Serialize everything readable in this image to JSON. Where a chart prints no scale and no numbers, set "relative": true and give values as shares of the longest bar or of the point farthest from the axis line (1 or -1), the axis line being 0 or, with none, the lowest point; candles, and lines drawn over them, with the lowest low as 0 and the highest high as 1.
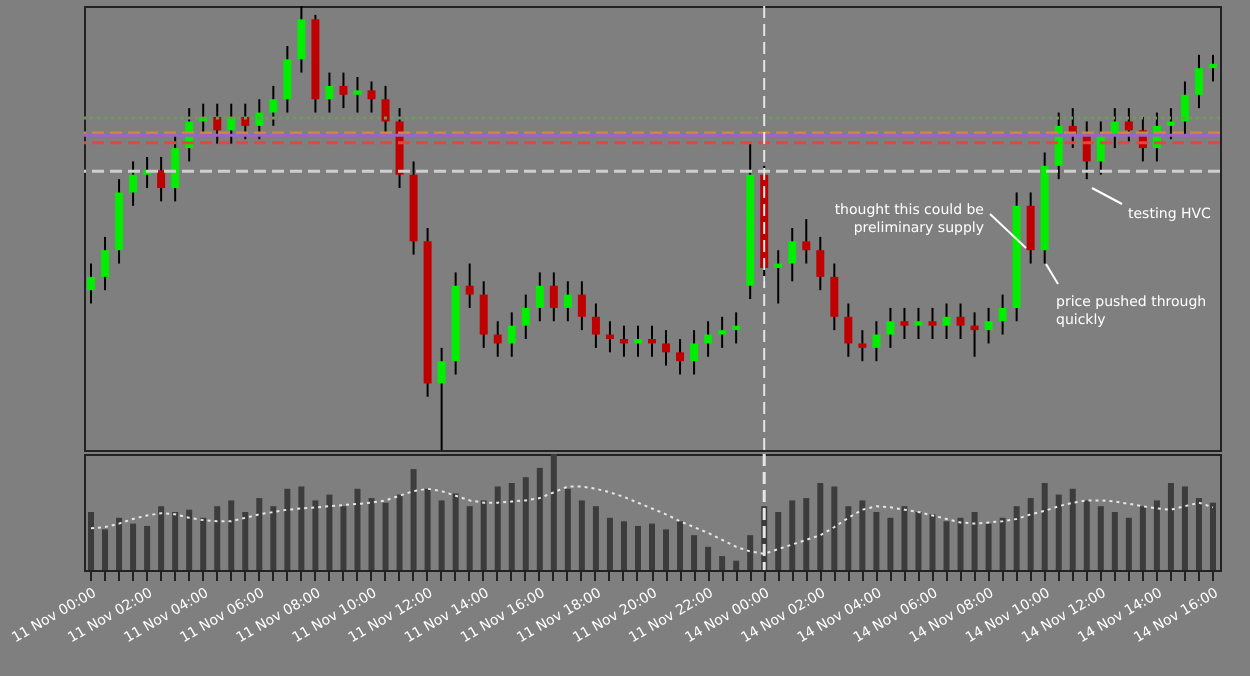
{
  "chart_data": [
    {
      "type": "candlestick",
      "relative": true,
      "categories": [
        null,
        null,
        null,
        null,
        null,
        null,
        null,
        null,
        null,
        null,
        null,
        null,
        null,
        null,
        null,
        null,
        null,
        null,
        null,
        null,
        null,
        null,
        null,
        null,
        null,
        null,
        null,
        null,
        null,
        null,
        null,
        null,
        null,
        null,
        null,
        null,
        null,
        null,
        null,
        null,
        null,
        null,
        null,
        null,
        null,
        null,
        null,
        null,
        null,
        null,
        null,
        null,
        null,
        null,
        null,
        null,
        null,
        null,
        null,
        null,
        null,
        null,
        null,
        null,
        null,
        null,
        null,
        null,
        null,
        null,
        null,
        null,
        null,
        null,
        null,
        null,
        null,
        null,
        null,
        null,
        null
      ],
      "ohlc": [
        [
          0.36,
          0.42,
          0.33,
          0.39
        ],
        [
          0.39,
          0.48,
          0.36,
          0.45
        ],
        [
          0.45,
          0.61,
          0.42,
          0.58
        ],
        [
          0.58,
          0.65,
          0.55,
          0.62
        ],
        [
          0.62,
          0.66,
          0.59,
          0.63
        ],
        [
          0.63,
          0.66,
          0.56,
          0.59
        ],
        [
          0.59,
          0.71,
          0.56,
          0.68
        ],
        [
          0.68,
          0.77,
          0.65,
          0.74
        ],
        [
          0.74,
          0.78,
          0.71,
          0.75
        ],
        [
          0.75,
          0.78,
          0.69,
          0.72
        ],
        [
          0.72,
          0.78,
          0.69,
          0.75
        ],
        [
          0.75,
          0.78,
          0.7,
          0.73
        ],
        [
          0.73,
          0.79,
          0.7,
          0.76
        ],
        [
          0.76,
          0.82,
          0.73,
          0.79
        ],
        [
          0.79,
          0.91,
          0.76,
          0.88
        ],
        [
          0.88,
          1,
          0.85,
          0.97
        ],
        [
          0.97,
          0.98,
          0.76,
          0.79
        ],
        [
          0.79,
          0.85,
          0.76,
          0.82
        ],
        [
          0.82,
          0.85,
          0.77,
          0.8
        ],
        [
          0.8,
          0.84,
          0.76,
          0.81
        ],
        [
          0.81,
          0.83,
          0.76,
          0.79
        ],
        [
          0.79,
          0.82,
          0.71,
          0.74
        ],
        [
          0.74,
          0.77,
          0.59,
          0.62
        ],
        [
          0.62,
          0.65,
          0.44,
          0.47
        ],
        [
          0.47,
          0.5,
          0.12,
          0.15
        ],
        [
          0.15,
          0.23,
          0,
          0.2
        ],
        [
          0.2,
          0.4,
          0.17,
          0.37
        ],
        [
          0.37,
          0.42,
          0.32,
          0.35
        ],
        [
          0.35,
          0.38,
          0.23,
          0.26
        ],
        [
          0.26,
          0.29,
          0.21,
          0.24
        ],
        [
          0.24,
          0.31,
          0.21,
          0.28
        ],
        [
          0.28,
          0.35,
          0.25,
          0.32
        ],
        [
          0.32,
          0.4,
          0.29,
          0.37
        ],
        [
          0.37,
          0.4,
          0.29,
          0.32
        ],
        [
          0.32,
          0.38,
          0.29,
          0.35
        ],
        [
          0.35,
          0.38,
          0.27,
          0.3
        ],
        [
          0.3,
          0.33,
          0.23,
          0.26
        ],
        [
          0.26,
          0.29,
          0.22,
          0.25
        ],
        [
          0.25,
          0.28,
          0.21,
          0.24
        ],
        [
          0.24,
          0.28,
          0.21,
          0.25
        ],
        [
          0.25,
          0.28,
          0.21,
          0.24
        ],
        [
          0.24,
          0.27,
          0.19,
          0.22
        ],
        [
          0.22,
          0.25,
          0.17,
          0.2
        ],
        [
          0.2,
          0.27,
          0.17,
          0.24
        ],
        [
          0.24,
          0.29,
          0.21,
          0.26
        ],
        [
          0.26,
          0.3,
          0.23,
          0.27
        ],
        [
          0.27,
          0.31,
          0.24,
          0.28
        ],
        [
          0.37,
          0.69,
          0.34,
          0.62
        ],
        [
          0.62,
          0.64,
          0.38,
          0.41
        ],
        [
          0.41,
          0.45,
          0.33,
          0.42
        ],
        [
          0.42,
          0.5,
          0.38,
          0.47
        ],
        [
          0.47,
          0.52,
          0.42,
          0.45
        ],
        [
          0.45,
          0.48,
          0.36,
          0.39
        ],
        [
          0.39,
          0.42,
          0.27,
          0.3
        ],
        [
          0.3,
          0.33,
          0.21,
          0.24
        ],
        [
          0.24,
          0.27,
          0.2,
          0.23
        ],
        [
          0.23,
          0.29,
          0.2,
          0.26
        ],
        [
          0.26,
          0.32,
          0.23,
          0.29
        ],
        [
          0.29,
          0.32,
          0.25,
          0.28
        ],
        [
          0.28,
          0.32,
          0.25,
          0.29
        ],
        [
          0.29,
          0.32,
          0.25,
          0.28
        ],
        [
          0.28,
          0.33,
          0.25,
          0.3
        ],
        [
          0.3,
          0.33,
          0.25,
          0.28
        ],
        [
          0.28,
          0.31,
          0.21,
          0.27
        ],
        [
          0.27,
          0.32,
          0.24,
          0.29
        ],
        [
          0.29,
          0.35,
          0.26,
          0.32
        ],
        [
          0.32,
          0.58,
          0.29,
          0.55
        ],
        [
          0.55,
          0.58,
          0.42,
          0.45
        ],
        [
          0.45,
          0.67,
          0.42,
          0.64
        ],
        [
          0.64,
          0.76,
          0.61,
          0.73
        ],
        [
          0.73,
          0.77,
          0.68,
          0.71
        ],
        [
          0.71,
          0.74,
          0.61,
          0.65
        ],
        [
          0.65,
          0.74,
          0.62,
          0.71
        ],
        [
          0.71,
          0.77,
          0.68,
          0.74
        ],
        [
          0.74,
          0.77,
          0.69,
          0.72
        ],
        [
          0.72,
          0.75,
          0.65,
          0.68
        ],
        [
          0.68,
          0.76,
          0.65,
          0.73
        ],
        [
          0.73,
          0.77,
          0.7,
          0.74
        ],
        [
          0.74,
          0.83,
          0.71,
          0.8
        ],
        [
          0.8,
          0.89,
          0.77,
          0.86
        ],
        [
          0.86,
          0.89,
          0.83,
          0.87
        ]
      ],
      "ref_lines": [
        {
          "axis": "y",
          "value": 0.748,
          "color": "#6f9a5c",
          "line_style": "dotted"
        },
        {
          "axis": "y",
          "value": 0.714,
          "color": "#d08a3c",
          "line_style": "dashed"
        },
        {
          "axis": "y",
          "value": 0.709,
          "color": "#9a64c8",
          "line_style": "solid"
        },
        {
          "axis": "y",
          "value": 0.692,
          "color": "#e04848",
          "line_style": "dashed"
        },
        {
          "axis": "y",
          "value": 0.628,
          "color": "#cfcfcf",
          "line_style": "dashed"
        }
      ],
      "annotations": [
        "thought this could be preliminary supply",
        "price pushed through quickly",
        "testing HVC"
      ]
    },
    {
      "type": "bar",
      "relative": true,
      "ref_lines": [
        {
          "axis": "x",
          "value": "14 Nov 00:00",
          "color": "#e6e6e6",
          "line_style": "dashed"
        }
      ],
      "categories": [
        "11 Nov 00:00",
        null,
        null,
        null,
        "11 Nov 02:00",
        null,
        null,
        null,
        "11 Nov 04:00",
        null,
        null,
        null,
        "11 Nov 06:00",
        null,
        null,
        null,
        "11 Nov 08:00",
        null,
        null,
        null,
        "11 Nov 10:00",
        null,
        null,
        null,
        "11 Nov 12:00",
        null,
        null,
        null,
        "11 Nov 14:00",
        null,
        null,
        null,
        "11 Nov 16:00",
        null,
        null,
        null,
        "11 Nov 18:00",
        null,
        null,
        null,
        "11 Nov 20:00",
        null,
        null,
        null,
        "11 Nov 22:00",
        null,
        null,
        null,
        "14 Nov 00:00",
        null,
        null,
        null,
        "14 Nov 02:00",
        null,
        null,
        null,
        "14 Nov 04:00",
        null,
        null,
        null,
        "14 Nov 06:00",
        null,
        null,
        null,
        "14 Nov 08:00",
        null,
        null,
        null,
        "14 Nov 10:00",
        null,
        null,
        null,
        "14 Nov 12:00",
        null,
        null,
        null,
        "14 Nov 14:00",
        null,
        null,
        null,
        "14 Nov 16:00"
      ],
      "series": [
        {
          "color": "#3c3c3c",
          "values": [
            0.5,
            0.35,
            0.45,
            0.4,
            0.38,
            0.55,
            0.5,
            0.52,
            0.45,
            0.55,
            0.6,
            0.5,
            0.62,
            0.55,
            0.7,
            0.72,
            0.6,
            0.65,
            0.55,
            0.7,
            0.62,
            0.58,
            0.65,
            0.87,
            0.7,
            0.6,
            0.66,
            0.55,
            0.6,
            0.72,
            0.75,
            0.8,
            0.88,
            1,
            0.7,
            0.6,
            0.55,
            0.45,
            0.42,
            0.38,
            0.4,
            0.35,
            0.42,
            0.3,
            0.2,
            0.12,
            0.08,
            0.3,
            0.55,
            0.5,
            0.6,
            0.62,
            0.75,
            0.72,
            0.55,
            0.6,
            0.5,
            0.45,
            0.55,
            0.5,
            0.48,
            0.42,
            0.45,
            0.5,
            0.4,
            0.45,
            0.55,
            0.62,
            0.75,
            0.65,
            0.7,
            0.6,
            0.55,
            0.5,
            0.45,
            0.55,
            0.6,
            0.75,
            0.72,
            0.62,
            0.58
          ]
        },
        {
          "type": "line",
          "color": "#e6e6e6",
          "line_style": "dotted",
          "values": [
            0.36,
            0.37,
            0.4,
            0.44,
            0.47,
            0.49,
            0.48,
            0.45,
            0.43,
            0.42,
            0.42,
            0.45,
            0.48,
            0.5,
            0.52,
            0.53,
            0.54,
            0.55,
            0.56,
            0.57,
            0.58,
            0.6,
            0.64,
            0.68,
            0.7,
            0.68,
            0.64,
            0.6,
            0.58,
            0.58,
            0.59,
            0.6,
            0.62,
            0.67,
            0.72,
            0.72,
            0.7,
            0.67,
            0.63,
            0.58,
            0.53,
            0.48,
            0.42,
            0.37,
            0.32,
            0.26,
            0.2,
            0.16,
            0.14,
            0.18,
            0.22,
            0.26,
            0.3,
            0.37,
            0.45,
            0.52,
            0.55,
            0.54,
            0.52,
            0.5,
            0.47,
            0.44,
            0.41,
            0.4,
            0.41,
            0.42,
            0.44,
            0.48,
            0.51,
            0.55,
            0.58,
            0.6,
            0.6,
            0.59,
            0.57,
            0.55,
            0.53,
            0.52,
            0.55,
            0.58,
            0.54
          ]
        }
      ]
    }
  ]
}
